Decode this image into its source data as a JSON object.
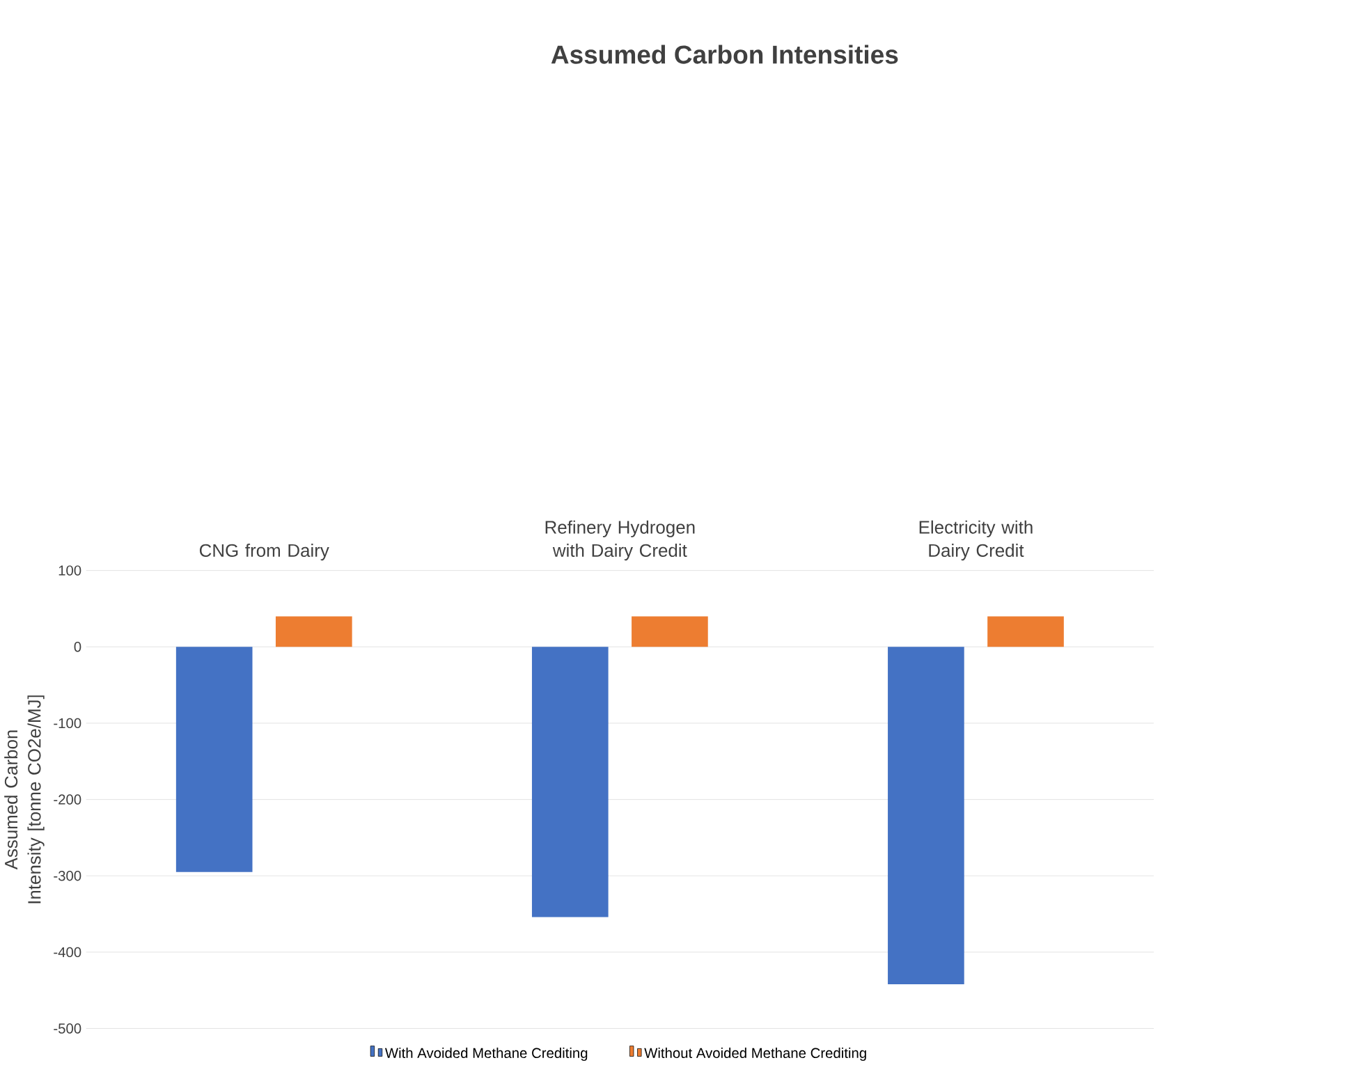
{
  "chart_data": {
    "type": "bar",
    "title": "Assumed Carbon Intensities",
    "ylabel": "Assumed Carbon Intensity [tonne CO2e/MJ]",
    "categories": [
      "CNG from Dairy",
      "Refinery Hydrogen with Dairy Credit",
      "Electricity with Dairy Credit"
    ],
    "series": [
      {
        "name": "With Avoided Methane Crediting",
        "color": "#4472c4",
        "values": [
          -295,
          -354,
          -442
        ]
      },
      {
        "name": "Without Avoided Methane Crediting",
        "color": "#ed7d31",
        "values": [
          40,
          40,
          40
        ]
      }
    ],
    "ylim": [
      -500,
      100
    ],
    "yticks": [
      -500,
      -400,
      -300,
      -200,
      -100,
      0,
      100
    ],
    "grid": "y",
    "legend": "bottom"
  }
}
